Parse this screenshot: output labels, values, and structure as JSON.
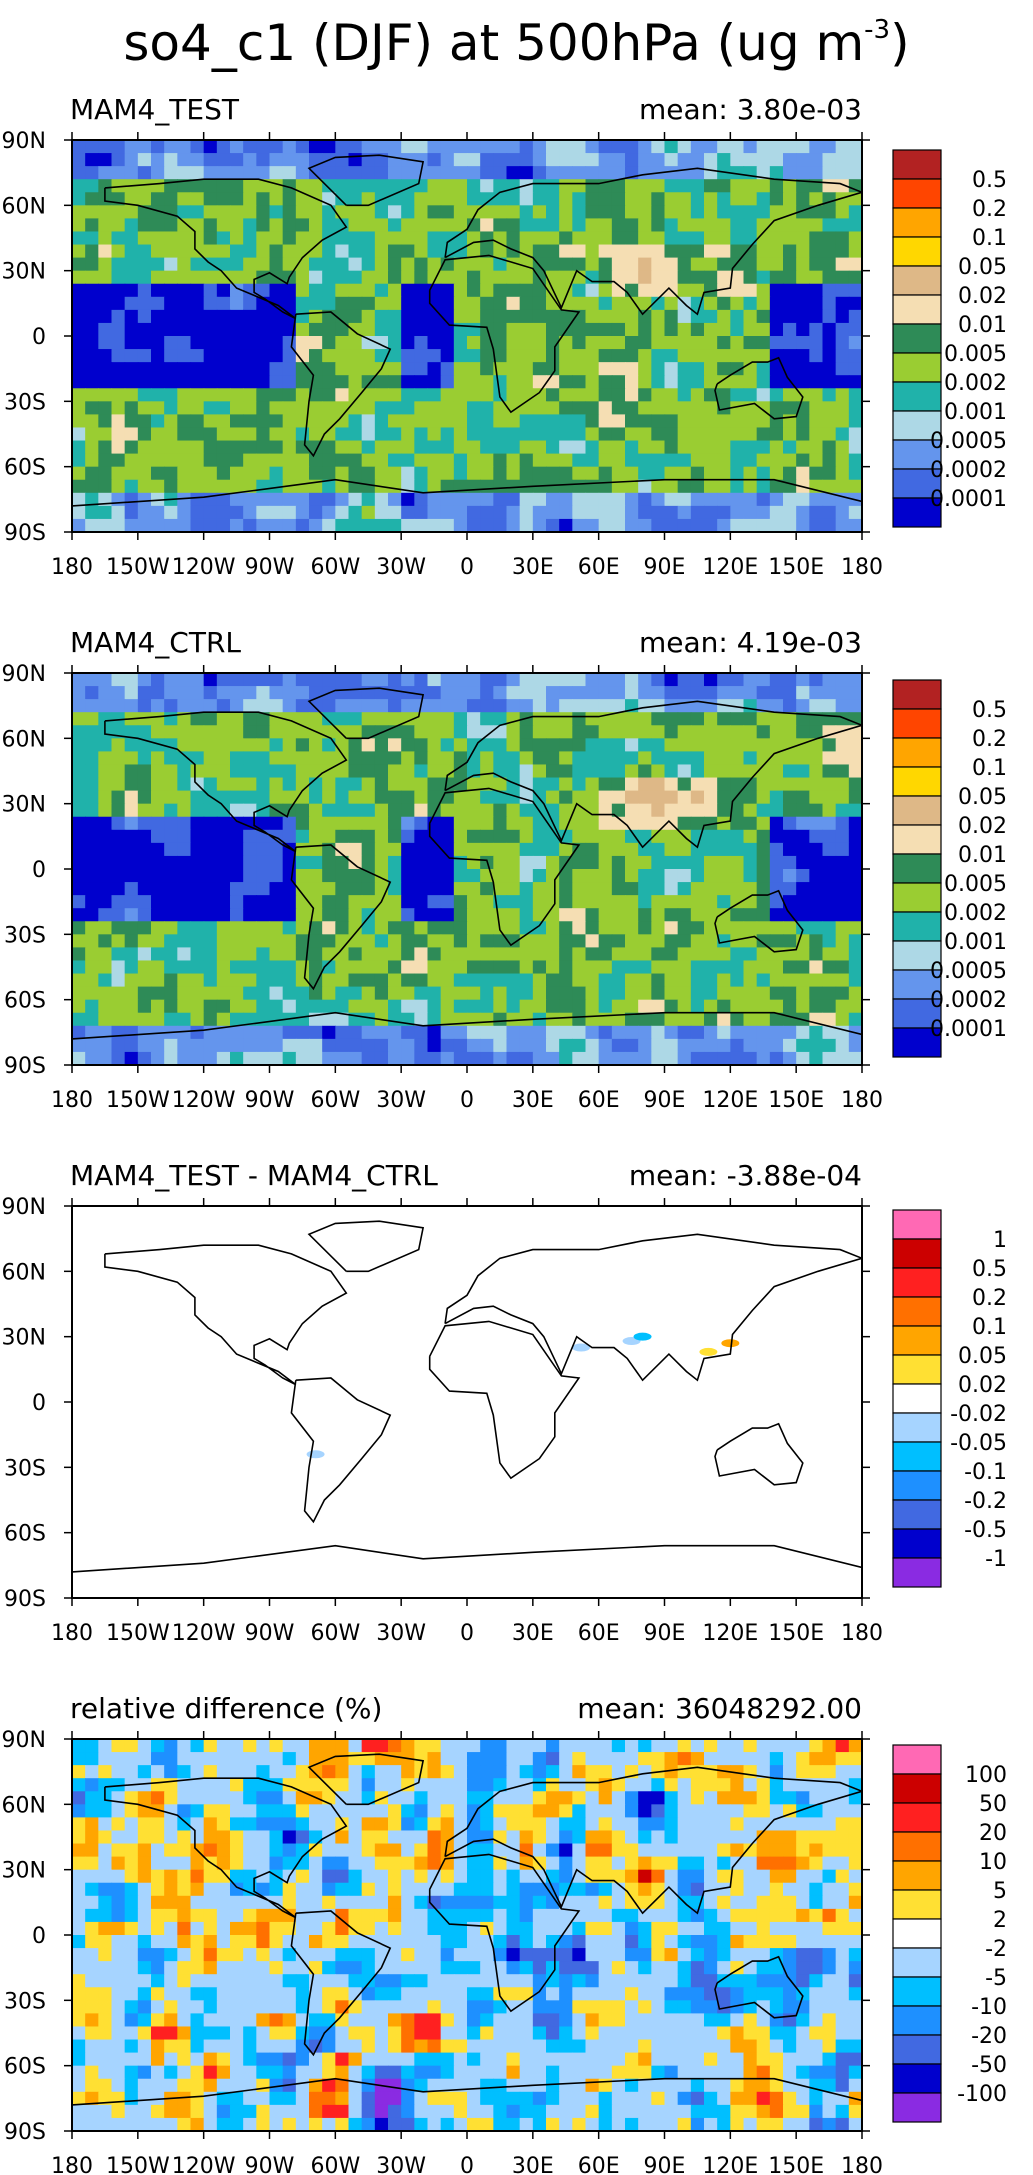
{
  "figure": {
    "title_main": "so4_c1 (DJF) at 500hPa (ug m",
    "title_sup": "-3",
    "title_close": ")"
  },
  "axes": {
    "lon_ticks": [
      "180",
      "150W",
      "120W",
      "90W",
      "60W",
      "30W",
      "0",
      "30E",
      "60E",
      "90E",
      "120E",
      "150E",
      "180"
    ],
    "lat_ticks": [
      "90N",
      "60N",
      "30N",
      "0",
      "30S",
      "60S",
      "90S"
    ]
  },
  "chart_data": [
    {
      "type": "heatmap",
      "title": "MAM4_TEST",
      "subtitle": "mean: 3.80e-03",
      "xlim": [
        -180,
        180
      ],
      "ylim": [
        -90,
        90
      ],
      "legend": "right",
      "levels": [
        "0.5",
        "0.2",
        "0.1",
        "0.05",
        "0.02",
        "0.01",
        "0.005",
        "0.002",
        "0.001",
        "0.0005",
        "0.0002",
        "0.0001"
      ],
      "colors": [
        "#b22222",
        "#ff4500",
        "#ffa500",
        "#ffd700",
        "#deb887",
        "#f5deb3",
        "#2e8b57",
        "#9acd32",
        "#20b2aa",
        "#add8e6",
        "#6495ed",
        "#4169e1",
        "#0000cd"
      ]
    },
    {
      "type": "heatmap",
      "title": "MAM4_CTRL",
      "subtitle": "mean: 4.19e-03",
      "xlim": [
        -180,
        180
      ],
      "ylim": [
        -90,
        90
      ],
      "legend": "right",
      "levels": [
        "0.5",
        "0.2",
        "0.1",
        "0.05",
        "0.02",
        "0.01",
        "0.005",
        "0.002",
        "0.001",
        "0.0005",
        "0.0002",
        "0.0001"
      ],
      "colors": [
        "#b22222",
        "#ff4500",
        "#ffa500",
        "#ffd700",
        "#deb887",
        "#f5deb3",
        "#2e8b57",
        "#9acd32",
        "#20b2aa",
        "#add8e6",
        "#6495ed",
        "#4169e1",
        "#0000cd"
      ]
    },
    {
      "type": "heatmap",
      "title": "MAM4_TEST - MAM4_CTRL",
      "subtitle": "mean: -3.88e-04",
      "xlim": [
        -180,
        180
      ],
      "ylim": [
        -90,
        90
      ],
      "legend": "right",
      "levels": [
        "1",
        "0.5",
        "0.2",
        "0.1",
        "0.05",
        "0.02",
        "-0.02",
        "-0.05",
        "-0.1",
        "-0.2",
        "-0.5",
        "-1"
      ],
      "colors": [
        "#ff69b4",
        "#cc0000",
        "#ff2020",
        "#ff7000",
        "#ffa500",
        "#ffe033",
        "#ffffff",
        "#a6d4ff",
        "#00bfff",
        "#1e90ff",
        "#4169e1",
        "#0000cd",
        "#8a2be2"
      ]
    },
    {
      "type": "heatmap",
      "title": "relative difference (%)",
      "subtitle": "mean: 36048292.00",
      "xlim": [
        -180,
        180
      ],
      "ylim": [
        -90,
        90
      ],
      "legend": "right",
      "levels": [
        "100",
        "50",
        "20",
        "10",
        "5",
        "2",
        "-2",
        "-5",
        "-10",
        "-20",
        "-50",
        "-100"
      ],
      "colors": [
        "#ff69b4",
        "#cc0000",
        "#ff2020",
        "#ff7000",
        "#ffa500",
        "#ffe033",
        "#ffffff",
        "#a6d4ff",
        "#00bfff",
        "#1e90ff",
        "#4169e1",
        "#0000cd",
        "#8a2be2"
      ]
    }
  ]
}
